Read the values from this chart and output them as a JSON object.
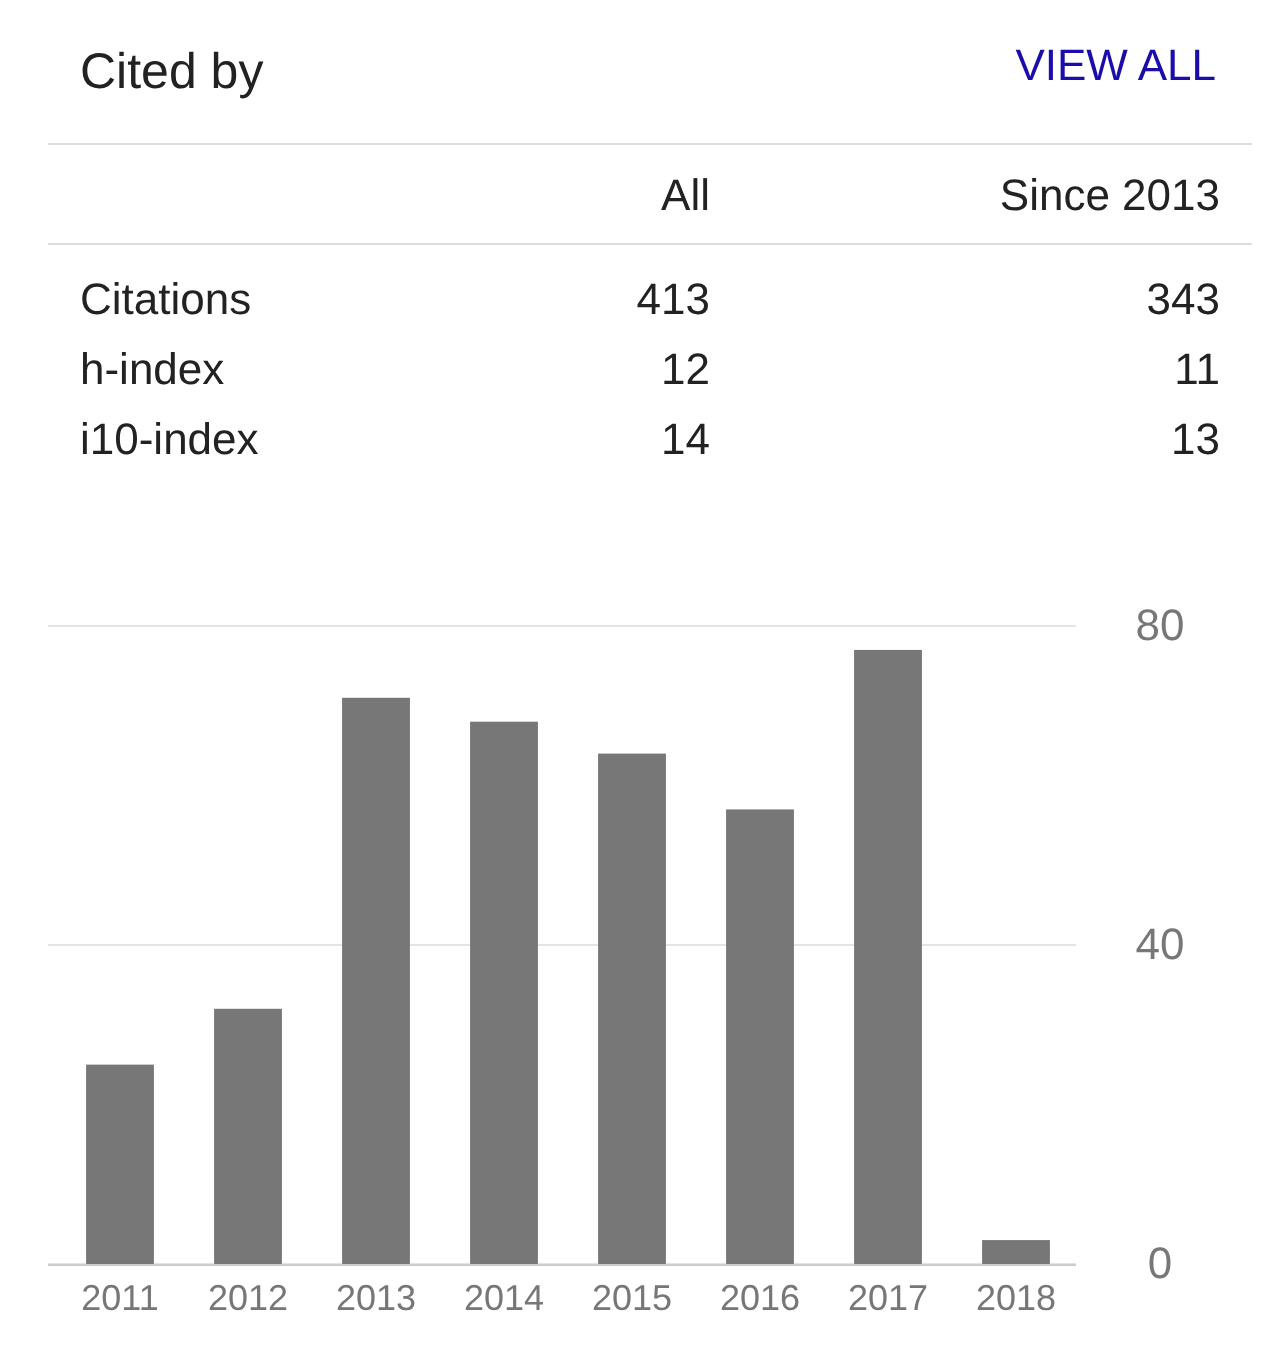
{
  "chart_data": {
    "type": "bar",
    "title": "Cited by",
    "annotations": [
      "VIEW ALL",
      "All",
      "Since 2013",
      "Citations",
      "413",
      "343",
      "h-index",
      "12",
      "11",
      "i10-index",
      "14",
      "13"
    ],
    "categories": [
      "2011",
      "2012",
      "2013",
      "2014",
      "2015",
      "2016",
      "2017",
      "2018"
    ],
    "values": [
      25,
      32,
      71,
      68,
      64,
      57,
      77,
      3
    ],
    "color": "#777777",
    "ylim": [
      0,
      80
    ],
    "yticks": [
      0,
      40,
      80
    ],
    "grid": "y"
  }
}
